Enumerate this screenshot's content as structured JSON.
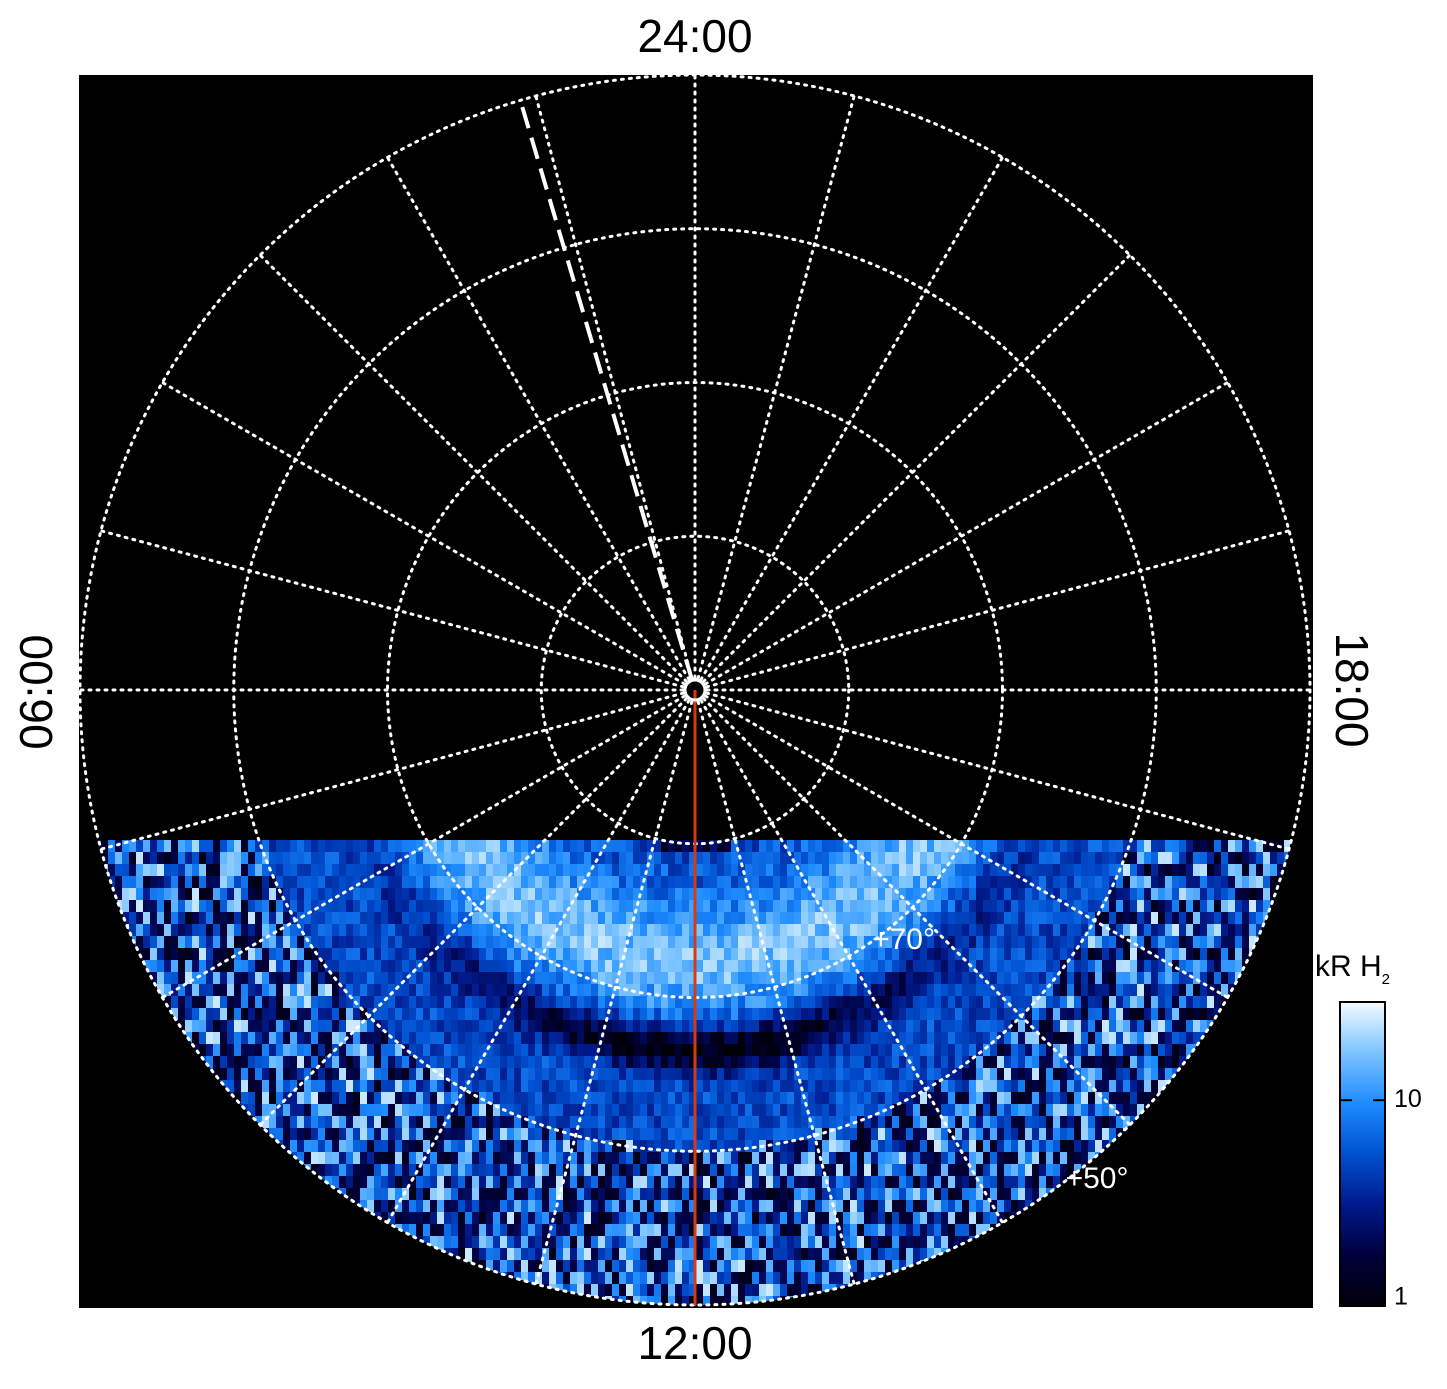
{
  "chart_data": {
    "type": "polar-map",
    "time_labels": {
      "top": "24:00",
      "bottom": "12:00",
      "left": "06:00",
      "right": "18:00"
    },
    "hourlim": [
      0,
      24
    ],
    "hour_ticks": [
      0,
      1,
      2,
      3,
      4,
      5,
      6,
      7,
      8,
      9,
      10,
      11,
      12,
      13,
      14,
      15,
      16,
      17,
      18,
      19,
      20,
      21,
      22,
      23
    ],
    "rlim": [
      90,
      50
    ],
    "latitude_circles": [
      80,
      70,
      60,
      50
    ],
    "latitude_labels": [
      {
        "value": 70,
        "label": "+70°"
      },
      {
        "value": 50,
        "label": "+50°"
      }
    ],
    "dashed_meridian_hour": 1.1,
    "red_meridian_hour": 12,
    "red_meridian_color": "#d83a10",
    "colorbar": {
      "title": "kR H",
      "title_subscript": "2",
      "scale": "log",
      "lim": [
        1,
        30
      ],
      "ticks": [
        1,
        10
      ],
      "colors": [
        "#000008",
        "#00003c",
        "#001a8c",
        "#0050d0",
        "#1e8cff",
        "#7cc4ff",
        "#f4fbff"
      ]
    }
  }
}
